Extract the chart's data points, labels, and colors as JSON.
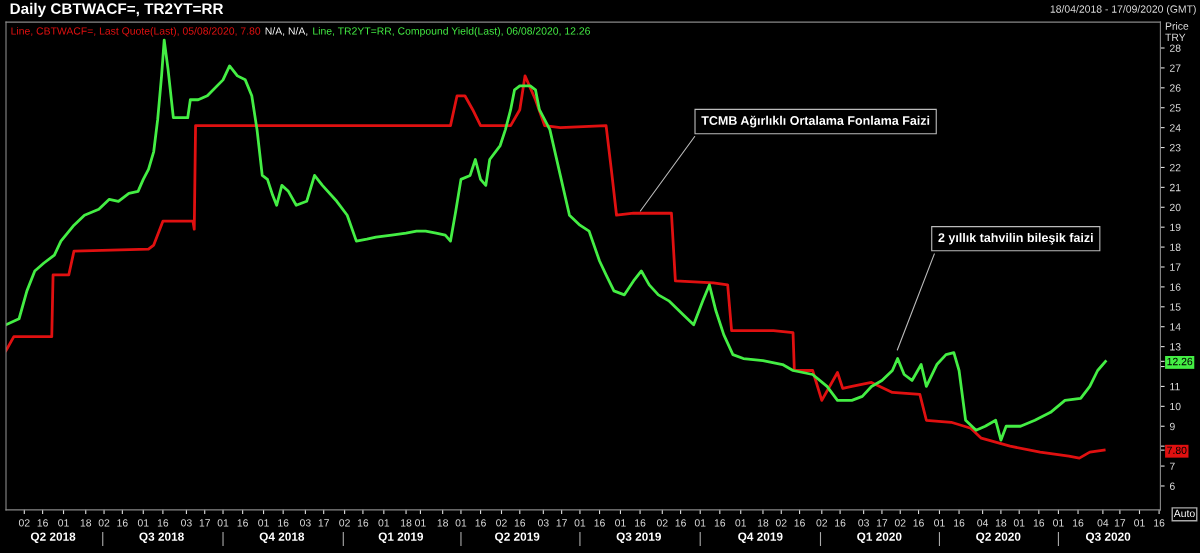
{
  "chart_data": {
    "type": "line",
    "title": "Daily CBTWACF=, TR2YT=RR",
    "ylabel": "Price\nTRY",
    "annotations": [
      "N/A, N/A,",
      "18/04/2018 - 17/09/2020 (GMT)",
      "Auto",
      {
        "text": "TCMB Ağırlıklı Ortalama Fonlama Faizi",
        "x": "2019-08-15",
        "y": 19.7
      },
      {
        "text": "2 yıllık tahvilin bileşik faizi",
        "x": "2020-02-28",
        "y": 12.7
      }
    ],
    "series": [
      {
        "name": "Line, CBTWACF=, Last Quote(Last), 05/08/2020, 7.80",
        "color": "#e01010",
        "x": [
          "2018-04-18",
          "2018-04-24",
          "2018-05-23",
          "2018-05-24",
          "2018-06-05",
          "2018-06-09",
          "2018-08-05",
          "2018-08-09",
          "2018-08-16",
          "2018-09-08",
          "2018-09-09",
          "2018-09-10",
          "2019-03-24",
          "2019-03-29",
          "2019-04-04",
          "2019-04-10",
          "2019-04-16",
          "2019-05-09",
          "2019-05-16",
          "2019-05-20",
          "2019-05-28",
          "2019-06-04",
          "2019-06-16",
          "2019-07-21",
          "2019-07-25",
          "2019-07-29",
          "2019-08-11",
          "2019-09-09",
          "2019-09-12",
          "2019-10-11",
          "2019-10-22",
          "2019-10-25",
          "2019-11-26",
          "2019-12-11",
          "2019-12-12",
          "2019-12-26",
          "2020-01-02",
          "2020-01-14",
          "2020-01-18",
          "2020-01-25",
          "2020-02-09",
          "2020-02-25",
          "2020-03-17",
          "2020-03-22",
          "2020-04-10",
          "2020-04-25",
          "2020-05-03",
          "2020-05-25",
          "2020-06-17",
          "2020-07-09",
          "2020-07-17",
          "2020-07-25",
          "2020-08-05"
        ],
        "values": [
          12.8,
          13.5,
          13.5,
          16.6,
          16.6,
          17.8,
          17.9,
          18.1,
          19.3,
          19.3,
          18.9,
          24.1,
          24.1,
          25.6,
          25.6,
          24.9,
          24.1,
          24.1,
          24.9,
          26.6,
          25.4,
          24.1,
          24.0,
          24.1,
          21.9,
          19.6,
          19.7,
          19.7,
          16.3,
          16.2,
          16.1,
          13.8,
          13.8,
          13.7,
          11.8,
          11.8,
          10.3,
          11.7,
          10.9,
          11.0,
          11.2,
          10.7,
          10.6,
          9.3,
          9.2,
          8.9,
          8.4,
          8.0,
          7.7,
          7.5,
          7.4,
          7.7,
          7.8
        ]
      },
      {
        "name": "Line, TR2YT=RR, Compound Yield(Last), 06/08/2020, 12.26",
        "color": "#44ee44",
        "x": [
          "2018-04-18",
          "2018-04-28",
          "2018-05-04",
          "2018-05-10",
          "2018-05-17",
          "2018-05-25",
          "2018-05-30",
          "2018-06-09",
          "2018-06-17",
          "2018-06-28",
          "2018-07-06",
          "2018-07-13",
          "2018-07-21",
          "2018-07-28",
          "2018-08-01",
          "2018-08-05",
          "2018-08-09",
          "2018-08-12",
          "2018-08-15",
          "2018-08-17",
          "2018-08-20",
          "2018-08-24",
          "2018-09-04",
          "2018-09-06",
          "2018-09-12",
          "2018-09-19",
          "2018-10-01",
          "2018-10-06",
          "2018-10-12",
          "2018-10-18",
          "2018-10-23",
          "2018-10-27",
          "2018-10-31",
          "2018-11-04",
          "2018-11-08",
          "2018-11-11",
          "2018-11-15",
          "2018-11-20",
          "2018-11-26",
          "2018-12-04",
          "2018-12-10",
          "2018-12-16",
          "2018-12-27",
          "2019-01-04",
          "2019-01-11",
          "2019-01-19",
          "2019-01-26",
          "2019-02-07",
          "2019-02-18",
          "2019-02-26",
          "2019-03-05",
          "2019-03-13",
          "2019-03-20",
          "2019-03-24",
          "2019-03-28",
          "2019-04-01",
          "2019-04-08",
          "2019-04-12",
          "2019-04-16",
          "2019-04-20",
          "2019-04-23",
          "2019-05-01",
          "2019-05-05",
          "2019-05-09",
          "2019-05-12",
          "2019-05-16",
          "2019-05-24",
          "2019-05-28",
          "2019-05-31",
          "2019-06-08",
          "2019-06-16",
          "2019-06-23",
          "2019-07-01",
          "2019-07-08",
          "2019-07-16",
          "2019-07-21",
          "2019-07-27",
          "2019-08-04",
          "2019-08-11",
          "2019-08-17",
          "2019-08-23",
          "2019-08-30",
          "2019-09-07",
          "2019-09-18",
          "2019-09-26",
          "2019-10-03",
          "2019-10-08",
          "2019-10-13",
          "2019-10-19",
          "2019-10-26",
          "2019-11-03",
          "2019-11-18",
          "2019-12-03",
          "2019-12-11",
          "2019-12-26",
          "2020-01-06",
          "2020-01-14",
          "2020-01-25",
          "2020-02-02",
          "2020-02-09",
          "2020-02-17",
          "2020-02-25",
          "2020-02-29",
          "2020-03-05",
          "2020-03-11",
          "2020-03-18",
          "2020-03-22",
          "2020-03-30",
          "2020-04-06",
          "2020-04-12",
          "2020-04-16",
          "2020-04-21",
          "2020-04-29",
          "2020-05-06",
          "2020-05-14",
          "2020-05-18",
          "2020-05-22",
          "2020-06-02",
          "2020-06-13",
          "2020-06-25",
          "2020-07-06",
          "2020-07-18",
          "2020-07-25",
          "2020-07-31",
          "2020-08-06"
        ],
        "values": [
          14.1,
          14.4,
          15.8,
          16.8,
          17.2,
          17.6,
          18.3,
          19.1,
          19.6,
          19.9,
          20.4,
          20.3,
          20.7,
          20.8,
          21.4,
          21.9,
          22.8,
          24.4,
          26.6,
          28.4,
          26.9,
          24.5,
          24.5,
          25.4,
          25.4,
          25.6,
          26.4,
          27.1,
          26.6,
          26.4,
          25.6,
          23.9,
          21.6,
          21.4,
          20.6,
          20.1,
          21.1,
          20.8,
          20.1,
          20.3,
          21.6,
          21.1,
          20.3,
          19.6,
          18.3,
          18.4,
          18.5,
          18.6,
          18.7,
          18.8,
          18.8,
          18.7,
          18.6,
          18.3,
          19.8,
          21.4,
          21.6,
          22.4,
          21.4,
          21.1,
          22.4,
          23.1,
          23.9,
          24.9,
          25.9,
          26.1,
          26.1,
          25.9,
          24.9,
          23.9,
          21.6,
          19.6,
          19.1,
          18.8,
          17.3,
          16.6,
          15.8,
          15.6,
          16.3,
          16.8,
          16.1,
          15.6,
          15.3,
          14.6,
          14.1,
          15.3,
          16.1,
          14.8,
          13.6,
          12.6,
          12.4,
          12.3,
          12.1,
          11.8,
          11.6,
          11.0,
          10.3,
          10.3,
          10.5,
          11.0,
          11.3,
          11.8,
          12.4,
          11.6,
          11.3,
          12.1,
          11.0,
          12.1,
          12.6,
          12.7,
          11.8,
          9.3,
          8.8,
          9.0,
          9.3,
          8.3,
          9.0,
          9.0,
          9.3,
          9.7,
          10.3,
          10.4,
          11.0,
          11.8,
          12.26
        ]
      }
    ],
    "xlim": [
      "2018-04-18",
      "2020-09-17"
    ],
    "xticks": [
      {
        "value": "2018-05-02",
        "label": "02"
      },
      {
        "value": "2018-05-16",
        "label": "16"
      },
      {
        "value": "2018-06-01",
        "label": "01"
      },
      {
        "value": "2018-06-18",
        "label": "18"
      },
      {
        "value": "2018-07-02",
        "label": "02"
      },
      {
        "value": "2018-07-16",
        "label": "16"
      },
      {
        "value": "2018-08-01",
        "label": "01"
      },
      {
        "value": "2018-08-16",
        "label": "16"
      },
      {
        "value": "2018-09-03",
        "label": "03"
      },
      {
        "value": "2018-09-17",
        "label": "17"
      },
      {
        "value": "2018-10-01",
        "label": "01"
      },
      {
        "value": "2018-10-16",
        "label": "16"
      },
      {
        "value": "2018-11-01",
        "label": "01"
      },
      {
        "value": "2018-11-16",
        "label": "16"
      },
      {
        "value": "2018-12-03",
        "label": "03"
      },
      {
        "value": "2018-12-17",
        "label": "17"
      },
      {
        "value": "2019-01-02",
        "label": "02"
      },
      {
        "value": "2019-01-16",
        "label": "16"
      },
      {
        "value": "2019-02-01",
        "label": "01"
      },
      {
        "value": "2019-02-18",
        "label": "18"
      },
      {
        "value": "2019-03-01",
        "label": "01"
      },
      {
        "value": "2019-03-18",
        "label": "18"
      },
      {
        "value": "2019-04-01",
        "label": "01"
      },
      {
        "value": "2019-04-16",
        "label": "16"
      },
      {
        "value": "2019-05-02",
        "label": "02"
      },
      {
        "value": "2019-05-16",
        "label": "16"
      },
      {
        "value": "2019-06-03",
        "label": "03"
      },
      {
        "value": "2019-06-17",
        "label": "17"
      },
      {
        "value": "2019-07-01",
        "label": "01"
      },
      {
        "value": "2019-07-16",
        "label": "16"
      },
      {
        "value": "2019-08-01",
        "label": "01"
      },
      {
        "value": "2019-08-16",
        "label": "16"
      },
      {
        "value": "2019-09-02",
        "label": "02"
      },
      {
        "value": "2019-09-16",
        "label": "16"
      },
      {
        "value": "2019-10-01",
        "label": "01"
      },
      {
        "value": "2019-10-16",
        "label": "16"
      },
      {
        "value": "2019-11-01",
        "label": "01"
      },
      {
        "value": "2019-11-18",
        "label": "18"
      },
      {
        "value": "2019-12-02",
        "label": "02"
      },
      {
        "value": "2019-12-16",
        "label": "16"
      },
      {
        "value": "2020-01-02",
        "label": "02"
      },
      {
        "value": "2020-01-16",
        "label": "16"
      },
      {
        "value": "2020-02-03",
        "label": "03"
      },
      {
        "value": "2020-02-17",
        "label": "17"
      },
      {
        "value": "2020-03-02",
        "label": "02"
      },
      {
        "value": "2020-03-16",
        "label": "16"
      },
      {
        "value": "2020-04-01",
        "label": "01"
      },
      {
        "value": "2020-04-16",
        "label": "16"
      },
      {
        "value": "2020-05-04",
        "label": "04"
      },
      {
        "value": "2020-05-18",
        "label": "18"
      },
      {
        "value": "2020-06-01",
        "label": "01"
      },
      {
        "value": "2020-06-16",
        "label": "16"
      },
      {
        "value": "2020-07-01",
        "label": "01"
      },
      {
        "value": "2020-07-16",
        "label": "16"
      },
      {
        "value": "2020-08-04",
        "label": "04"
      },
      {
        "value": "2020-08-17",
        "label": "17"
      },
      {
        "value": "2020-09-01",
        "label": "01"
      },
      {
        "value": "2020-09-16",
        "label": "16"
      }
    ],
    "x2lim": [
      "2018-04-18",
      "2020-09-17"
    ],
    "x2ticks": [
      {
        "value": "2018-05-24",
        "label": "Q2 2018"
      },
      {
        "value": "2018-07-01",
        "label": null
      },
      {
        "value": "2018-08-15",
        "label": "Q3 2018"
      },
      {
        "value": "2018-10-01",
        "label": null
      },
      {
        "value": "2018-11-15",
        "label": "Q4 2018"
      },
      {
        "value": "2019-01-01",
        "label": null
      },
      {
        "value": "2019-02-14",
        "label": "Q1 2019"
      },
      {
        "value": "2019-04-01",
        "label": null
      },
      {
        "value": "2019-05-14",
        "label": "Q2 2019"
      },
      {
        "value": "2019-07-01",
        "label": null
      },
      {
        "value": "2019-08-15",
        "label": "Q3 2019"
      },
      {
        "value": "2019-10-01",
        "label": null
      },
      {
        "value": "2019-11-16",
        "label": "Q4 2019"
      },
      {
        "value": "2020-01-01",
        "label": null
      },
      {
        "value": "2020-02-15",
        "label": "Q1 2020"
      },
      {
        "value": "2020-04-01",
        "label": null
      },
      {
        "value": "2020-05-16",
        "label": "Q2 2020"
      },
      {
        "value": "2020-07-01",
        "label": null
      },
      {
        "value": "2020-08-08",
        "label": "Q3 2020"
      }
    ],
    "ylim": [
      4.8,
      29.3
    ],
    "yticks": [
      6,
      7,
      {
        "value": 7.8,
        "label": "7.80"
      },
      {
        "value": 8,
        "label": null
      },
      9,
      10,
      11,
      {
        "value": 12,
        "label": null
      },
      12.26,
      13,
      14,
      15,
      16,
      17,
      18,
      19,
      20,
      21,
      22,
      23,
      24,
      25,
      26,
      27,
      28
    ],
    "grid": false,
    "marker": "none",
    "line_style": "solid"
  }
}
